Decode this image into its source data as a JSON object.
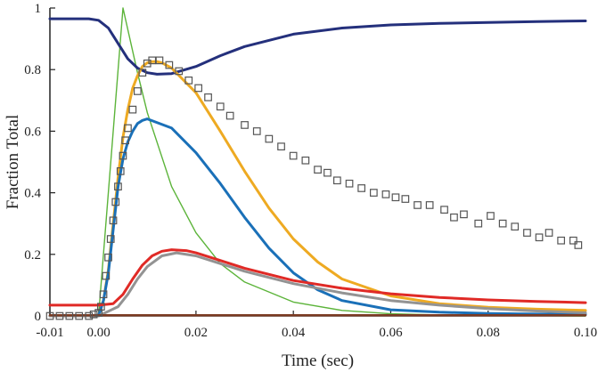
{
  "chart_data": {
    "type": "line",
    "title": "",
    "xlabel": "Time (sec)",
    "ylabel": "Fraction Total",
    "xlim": [
      -0.01,
      0.1
    ],
    "ylim": [
      0,
      1
    ],
    "x_ticks": [
      -0.01,
      0.0,
      0.02,
      0.04,
      0.06,
      0.08,
      0.1
    ],
    "x_tick_labels": [
      "-0.01",
      "0.00",
      "0.02",
      "0.04",
      "0.06",
      "0.08",
      "0.10"
    ],
    "y_ticks": [
      0,
      0.2,
      0.4,
      0.6,
      0.8,
      1
    ],
    "y_tick_labels": [
      "0",
      "0.2",
      "0.4",
      "0.6",
      "0.8",
      "1"
    ],
    "grid": false,
    "series": [
      {
        "name": "green",
        "color": "#5cb43a",
        "width": 1.4,
        "x": [
          -0.01,
          0.0,
          0.005,
          0.008,
          0.01,
          0.015,
          0.02,
          0.025,
          0.03,
          0.04,
          0.05,
          0.06,
          0.07,
          0.1
        ],
        "y": [
          0,
          0,
          1.0,
          0.79,
          0.66,
          0.42,
          0.27,
          0.17,
          0.11,
          0.045,
          0.018,
          0.007,
          0.003,
          0
        ]
      },
      {
        "name": "navy",
        "color": "#24307c",
        "width": 3,
        "x": [
          -0.01,
          -0.002,
          0.0,
          0.002,
          0.004,
          0.006,
          0.008,
          0.01,
          0.012,
          0.015,
          0.02,
          0.025,
          0.03,
          0.04,
          0.05,
          0.06,
          0.07,
          0.08,
          0.09,
          0.1
        ],
        "y": [
          0.965,
          0.965,
          0.96,
          0.935,
          0.885,
          0.835,
          0.805,
          0.79,
          0.785,
          0.787,
          0.81,
          0.845,
          0.875,
          0.915,
          0.935,
          0.945,
          0.95,
          0.953,
          0.956,
          0.958
        ]
      },
      {
        "name": "orange",
        "color": "#eeaa22",
        "width": 3,
        "x": [
          -0.01,
          0.0,
          0.001,
          0.002,
          0.003,
          0.004,
          0.005,
          0.006,
          0.007,
          0.008,
          0.009,
          0.01,
          0.011,
          0.012,
          0.013,
          0.015,
          0.02,
          0.025,
          0.03,
          0.035,
          0.04,
          0.045,
          0.05,
          0.06,
          0.07,
          0.08,
          0.09,
          0.1
        ],
        "y": [
          0,
          0,
          0.05,
          0.15,
          0.3,
          0.45,
          0.58,
          0.67,
          0.74,
          0.78,
          0.81,
          0.822,
          0.826,
          0.826,
          0.822,
          0.805,
          0.725,
          0.6,
          0.47,
          0.35,
          0.25,
          0.175,
          0.12,
          0.065,
          0.04,
          0.028,
          0.022,
          0.018
        ]
      },
      {
        "name": "blue",
        "color": "#1a70b8",
        "width": 3,
        "x": [
          -0.01,
          0.0,
          0.001,
          0.002,
          0.003,
          0.004,
          0.005,
          0.006,
          0.007,
          0.008,
          0.009,
          0.01,
          0.015,
          0.02,
          0.025,
          0.03,
          0.035,
          0.04,
          0.045,
          0.05,
          0.06,
          0.07,
          0.08,
          0.09,
          0.1
        ],
        "y": [
          0,
          0,
          0.05,
          0.14,
          0.28,
          0.42,
          0.51,
          0.565,
          0.6,
          0.625,
          0.635,
          0.64,
          0.61,
          0.53,
          0.43,
          0.32,
          0.22,
          0.14,
          0.085,
          0.05,
          0.02,
          0.012,
          0.008,
          0.006,
          0.005
        ]
      },
      {
        "name": "gray",
        "color": "#939393",
        "width": 3,
        "x": [
          -0.01,
          0.0,
          0.004,
          0.006,
          0.008,
          0.01,
          0.013,
          0.016,
          0.02,
          0.025,
          0.03,
          0.035,
          0.04,
          0.05,
          0.06,
          0.07,
          0.08,
          0.09,
          0.1
        ],
        "y": [
          0,
          0,
          0.03,
          0.07,
          0.12,
          0.16,
          0.195,
          0.205,
          0.195,
          0.17,
          0.145,
          0.125,
          0.105,
          0.075,
          0.05,
          0.035,
          0.024,
          0.016,
          0.01
        ]
      },
      {
        "name": "red",
        "color": "#e02a26",
        "width": 3,
        "x": [
          -0.01,
          0.0,
          0.003,
          0.005,
          0.007,
          0.009,
          0.011,
          0.013,
          0.015,
          0.018,
          0.02,
          0.025,
          0.03,
          0.035,
          0.04,
          0.05,
          0.06,
          0.07,
          0.08,
          0.09,
          0.1
        ],
        "y": [
          0.035,
          0.035,
          0.04,
          0.07,
          0.12,
          0.165,
          0.195,
          0.21,
          0.215,
          0.212,
          0.205,
          0.18,
          0.155,
          0.135,
          0.115,
          0.09,
          0.072,
          0.06,
          0.052,
          0.047,
          0.043
        ]
      },
      {
        "name": "brown",
        "color": "#7b3a22",
        "width": 2.5,
        "x": [
          -0.01,
          0.1
        ],
        "y": [
          0.002,
          0.002
        ]
      }
    ],
    "markers": {
      "name": "data-squares",
      "color": "#555555",
      "x": [
        -0.01,
        -0.008,
        -0.006,
        -0.004,
        -0.002,
        -0.001,
        0.0,
        0.0005,
        0.001,
        0.0015,
        0.002,
        0.0025,
        0.003,
        0.0035,
        0.004,
        0.0045,
        0.005,
        0.0055,
        0.006,
        0.007,
        0.008,
        0.009,
        0.01,
        0.011,
        0.0125,
        0.0145,
        0.0165,
        0.0185,
        0.0205,
        0.0225,
        0.025,
        0.027,
        0.03,
        0.0325,
        0.035,
        0.0375,
        0.04,
        0.0425,
        0.045,
        0.047,
        0.049,
        0.0515,
        0.054,
        0.0565,
        0.059,
        0.061,
        0.063,
        0.0655,
        0.068,
        0.071,
        0.073,
        0.075,
        0.078,
        0.0805,
        0.083,
        0.0855,
        0.088,
        0.0905,
        0.0925,
        0.095,
        0.0975,
        0.0985
      ],
      "y": [
        0.0,
        0.0,
        0.0,
        0.0,
        0.0,
        0.005,
        0.01,
        0.03,
        0.07,
        0.13,
        0.19,
        0.25,
        0.31,
        0.37,
        0.42,
        0.47,
        0.52,
        0.57,
        0.61,
        0.67,
        0.73,
        0.79,
        0.82,
        0.83,
        0.83,
        0.815,
        0.795,
        0.765,
        0.74,
        0.71,
        0.68,
        0.65,
        0.62,
        0.6,
        0.575,
        0.55,
        0.52,
        0.505,
        0.475,
        0.465,
        0.44,
        0.43,
        0.415,
        0.4,
        0.395,
        0.385,
        0.38,
        0.36,
        0.36,
        0.345,
        0.32,
        0.33,
        0.3,
        0.325,
        0.3,
        0.29,
        0.27,
        0.255,
        0.27,
        0.245,
        0.245,
        0.23
      ]
    }
  }
}
